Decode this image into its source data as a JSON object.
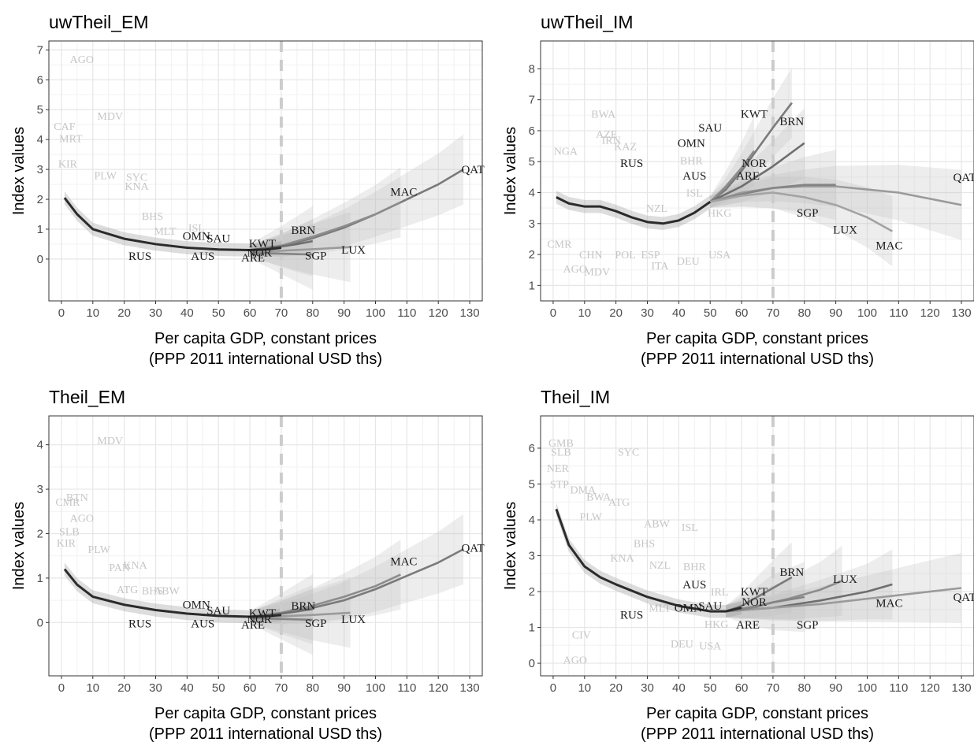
{
  "chart_data": [
    {
      "type": "line",
      "title": "uwTheil_EM",
      "xlabel": "Per capita GDP, constant prices",
      "xlabel2": "(PPP 2011 international USD ths)",
      "ylabel": "Index values",
      "xlim": [
        -4,
        134
      ],
      "ylim": [
        -1.4,
        7.3
      ],
      "xticks": [
        0,
        10,
        20,
        30,
        40,
        50,
        60,
        70,
        80,
        90,
        100,
        110,
        120,
        130
      ],
      "yticks": [
        0,
        1,
        2,
        3,
        4,
        5,
        6,
        7
      ],
      "vline_x": 70,
      "grid": true,
      "main_curve": {
        "x": [
          1,
          5,
          10,
          20,
          30,
          40,
          50,
          60,
          65,
          70
        ],
        "y": [
          2.05,
          1.5,
          1.0,
          0.68,
          0.5,
          0.38,
          0.32,
          0.3,
          0.32,
          0.38
        ]
      },
      "series": [
        {
          "name": "QAT",
          "x": [
            60,
            70,
            80,
            90,
            100,
            110,
            120,
            128
          ],
          "y": [
            0.3,
            0.42,
            0.7,
            1.05,
            1.5,
            2.0,
            2.5,
            3.0
          ]
        },
        {
          "name": "MAC",
          "x": [
            60,
            70,
            80,
            90,
            100,
            108
          ],
          "y": [
            0.3,
            0.45,
            0.75,
            1.1,
            1.5,
            1.9
          ]
        },
        {
          "name": "BRN",
          "x": [
            60,
            65,
            70,
            75,
            80
          ],
          "y": [
            0.3,
            0.36,
            0.42,
            0.5,
            0.6
          ]
        },
        {
          "name": "LUX",
          "x": [
            60,
            70,
            80,
            92
          ],
          "y": [
            0.25,
            0.28,
            0.33,
            0.4
          ]
        },
        {
          "name": "SGP",
          "x": [
            60,
            70,
            80
          ],
          "y": [
            0.22,
            0.18,
            0.15
          ]
        }
      ],
      "labels": [
        {
          "text": "OMN",
          "x": 43,
          "y": 0.78
        },
        {
          "text": "SAU",
          "x": 50,
          "y": 0.7
        },
        {
          "text": "KWT",
          "x": 64,
          "y": 0.52
        },
        {
          "text": "BRN",
          "x": 77,
          "y": 0.97
        },
        {
          "text": "NOR",
          "x": 63,
          "y": 0.22
        },
        {
          "text": "ARE",
          "x": 61,
          "y": 0.05
        },
        {
          "text": "AUS",
          "x": 45,
          "y": 0.1
        },
        {
          "text": "RUS",
          "x": 25,
          "y": 0.1
        },
        {
          "text": "SGP",
          "x": 81,
          "y": 0.12
        },
        {
          "text": "LUX",
          "x": 93,
          "y": 0.32
        },
        {
          "text": "MAC",
          "x": 109,
          "y": 2.25
        },
        {
          "text": "QAT",
          "x": 131,
          "y": 3.0
        }
      ],
      "background_labels": [
        {
          "text": "AGO",
          "x": 6.5,
          "y": 6.7
        },
        {
          "text": "MDV",
          "x": 15.5,
          "y": 4.8
        },
        {
          "text": "CAF",
          "x": 1,
          "y": 4.45
        },
        {
          "text": "MRT",
          "x": 3,
          "y": 4.05
        },
        {
          "text": "KIR",
          "x": 2,
          "y": 3.2
        },
        {
          "text": "PLW",
          "x": 14,
          "y": 2.8
        },
        {
          "text": "SYC",
          "x": 24,
          "y": 2.75
        },
        {
          "text": "KNA",
          "x": 24,
          "y": 2.45
        },
        {
          "text": "BHS",
          "x": 29,
          "y": 1.45
        },
        {
          "text": "ISL",
          "x": 43,
          "y": 1.05
        },
        {
          "text": "MLT",
          "x": 33,
          "y": 0.95
        }
      ]
    },
    {
      "type": "line",
      "title": "uwTheil_IM",
      "xlabel": "Per capita GDP, constant prices",
      "xlabel2": "(PPP 2011 international USD ths)",
      "ylabel": "Index values",
      "xlim": [
        -4,
        134
      ],
      "ylim": [
        0.5,
        8.9
      ],
      "xticks": [
        0,
        10,
        20,
        30,
        40,
        50,
        60,
        70,
        80,
        90,
        100,
        110,
        120,
        130
      ],
      "yticks": [
        1,
        2,
        3,
        4,
        5,
        6,
        7,
        8
      ],
      "vline_x": 70,
      "grid": true,
      "main_curve": {
        "x": [
          1,
          5,
          10,
          15,
          20,
          25,
          30,
          35,
          40,
          45,
          50
        ],
        "y": [
          3.85,
          3.65,
          3.55,
          3.55,
          3.4,
          3.2,
          3.05,
          3.0,
          3.1,
          3.35,
          3.7
        ]
      },
      "series": [
        {
          "name": "BRN",
          "x": [
            50,
            55,
            60,
            65,
            70,
            76
          ],
          "y": [
            3.7,
            4.1,
            4.7,
            5.4,
            6.1,
            6.9
          ]
        },
        {
          "name": "KWT",
          "x": [
            50,
            55,
            60,
            64
          ],
          "y": [
            3.7,
            4.2,
            4.8,
            5.35
          ]
        },
        {
          "name": "NOR",
          "x": [
            50,
            60,
            70,
            80
          ],
          "y": [
            3.7,
            4.2,
            4.85,
            5.6
          ]
        },
        {
          "name": "QAT",
          "x": [
            50,
            60,
            70,
            80,
            90,
            100,
            110,
            120,
            130
          ],
          "y": [
            3.7,
            4.0,
            4.15,
            4.2,
            4.2,
            4.1,
            4.0,
            3.8,
            3.6
          ]
        },
        {
          "name": "SGP",
          "x": [
            50,
            60,
            70,
            80,
            90
          ],
          "y": [
            3.7,
            3.95,
            4.15,
            4.25,
            4.25
          ]
        },
        {
          "name": "MAC",
          "x": [
            50,
            60,
            70,
            80,
            90,
            100,
            108
          ],
          "y": [
            3.7,
            3.9,
            4.0,
            3.85,
            3.6,
            3.2,
            2.75
          ]
        }
      ],
      "labels": [
        {
          "text": "KWT",
          "x": 64,
          "y": 6.55
        },
        {
          "text": "BRN",
          "x": 76,
          "y": 6.3
        },
        {
          "text": "SAU",
          "x": 50,
          "y": 6.1
        },
        {
          "text": "OMN",
          "x": 44,
          "y": 5.6
        },
        {
          "text": "RUS",
          "x": 25,
          "y": 4.95
        },
        {
          "text": "NOR",
          "x": 64,
          "y": 4.95
        },
        {
          "text": "ARE",
          "x": 62,
          "y": 4.55
        },
        {
          "text": "AUS",
          "x": 45,
          "y": 4.55
        },
        {
          "text": "SGP",
          "x": 81,
          "y": 3.35
        },
        {
          "text": "LUX",
          "x": 93,
          "y": 2.8
        },
        {
          "text": "MAC",
          "x": 107,
          "y": 2.3
        },
        {
          "text": "QAT",
          "x": 131,
          "y": 4.5
        }
      ],
      "background_labels": [
        {
          "text": "BWA",
          "x": 16,
          "y": 6.55
        },
        {
          "text": "AZE",
          "x": 17,
          "y": 5.9
        },
        {
          "text": "IRN",
          "x": 18.5,
          "y": 5.7
        },
        {
          "text": "KAZ",
          "x": 23,
          "y": 5.5
        },
        {
          "text": "NGA",
          "x": 4,
          "y": 5.35
        },
        {
          "text": "BHR",
          "x": 44,
          "y": 5.05
        },
        {
          "text": "ISL",
          "x": 45,
          "y": 4.0
        },
        {
          "text": "NZL",
          "x": 33,
          "y": 3.5
        },
        {
          "text": "HKG",
          "x": 53,
          "y": 3.35
        },
        {
          "text": "CHN",
          "x": 12,
          "y": 2.0
        },
        {
          "text": "POL",
          "x": 23,
          "y": 2.0
        },
        {
          "text": "ESP",
          "x": 31,
          "y": 2.0
        },
        {
          "text": "USA",
          "x": 53,
          "y": 2.0
        },
        {
          "text": "DEU",
          "x": 43,
          "y": 1.8
        },
        {
          "text": "ITA",
          "x": 34,
          "y": 1.65
        },
        {
          "text": "AGO",
          "x": 7,
          "y": 1.55
        },
        {
          "text": "MDV",
          "x": 14,
          "y": 1.45
        },
        {
          "text": "CMR",
          "x": 2,
          "y": 2.35
        }
      ]
    },
    {
      "type": "line",
      "title": "Theil_EM",
      "xlabel": "Per capita GDP, constant prices",
      "xlabel2": "(PPP 2011 international USD ths)",
      "ylabel": "Index values",
      "xlim": [
        -4,
        134
      ],
      "ylim": [
        -1.2,
        4.65
      ],
      "xticks": [
        0,
        10,
        20,
        30,
        40,
        50,
        60,
        70,
        80,
        90,
        100,
        110,
        120,
        130
      ],
      "yticks": [
        0,
        1,
        2,
        3,
        4
      ],
      "vline_x": 70,
      "grid": true,
      "main_curve": {
        "x": [
          1,
          5,
          10,
          20,
          30,
          40,
          50,
          60,
          65,
          70
        ],
        "y": [
          1.2,
          0.85,
          0.58,
          0.4,
          0.28,
          0.2,
          0.15,
          0.13,
          0.14,
          0.17
        ]
      },
      "series": [
        {
          "name": "QAT",
          "x": [
            60,
            70,
            80,
            90,
            100,
            110,
            120,
            128
          ],
          "y": [
            0.13,
            0.2,
            0.33,
            0.5,
            0.75,
            1.05,
            1.35,
            1.65
          ]
        },
        {
          "name": "MAC",
          "x": [
            60,
            70,
            80,
            90,
            100,
            108
          ],
          "y": [
            0.13,
            0.22,
            0.38,
            0.58,
            0.82,
            1.08
          ]
        },
        {
          "name": "BRN",
          "x": [
            60,
            65,
            70,
            75,
            80
          ],
          "y": [
            0.13,
            0.16,
            0.2,
            0.25,
            0.3
          ]
        },
        {
          "name": "LUX",
          "x": [
            60,
            70,
            80,
            92
          ],
          "y": [
            0.12,
            0.14,
            0.17,
            0.22
          ]
        },
        {
          "name": "SGP",
          "x": [
            60,
            70,
            80
          ],
          "y": [
            0.1,
            0.08,
            0.06
          ]
        }
      ],
      "labels": [
        {
          "text": "OMN",
          "x": 43,
          "y": 0.4
        },
        {
          "text": "SAU",
          "x": 50,
          "y": 0.27
        },
        {
          "text": "KWT",
          "x": 64,
          "y": 0.22
        },
        {
          "text": "BRN",
          "x": 77,
          "y": 0.38
        },
        {
          "text": "NOR",
          "x": 63,
          "y": 0.08
        },
        {
          "text": "ARE",
          "x": 61,
          "y": -0.05
        },
        {
          "text": "AUS",
          "x": 45,
          "y": -0.02
        },
        {
          "text": "RUS",
          "x": 25,
          "y": -0.02
        },
        {
          "text": "SGP",
          "x": 81,
          "y": -0.01
        },
        {
          "text": "LUX",
          "x": 93,
          "y": 0.08
        },
        {
          "text": "MAC",
          "x": 109,
          "y": 1.38
        },
        {
          "text": "QAT",
          "x": 131,
          "y": 1.68
        }
      ],
      "background_labels": [
        {
          "text": "MDV",
          "x": 15.5,
          "y": 4.1
        },
        {
          "text": "BTN",
          "x": 5,
          "y": 2.82
        },
        {
          "text": "CMR",
          "x": 2,
          "y": 2.72
        },
        {
          "text": "AGO",
          "x": 6.5,
          "y": 2.35
        },
        {
          "text": "SLB",
          "x": 2.5,
          "y": 2.05
        },
        {
          "text": "KIR",
          "x": 1.5,
          "y": 1.8
        },
        {
          "text": "PLW",
          "x": 12,
          "y": 1.65
        },
        {
          "text": "PAN",
          "x": 18.5,
          "y": 1.25
        },
        {
          "text": "KNA",
          "x": 23.5,
          "y": 1.3
        },
        {
          "text": "ATG",
          "x": 21,
          "y": 0.75
        },
        {
          "text": "BHS",
          "x": 29,
          "y": 0.72
        },
        {
          "text": "ABW",
          "x": 33.5,
          "y": 0.72
        }
      ]
    },
    {
      "type": "line",
      "title": "Theil_IM",
      "xlabel": "Per capita GDP, constant prices",
      "xlabel2": "(PPP 2011 international USD ths)",
      "ylabel": "Index values",
      "xlim": [
        -4,
        134
      ],
      "ylim": [
        -0.35,
        6.9
      ],
      "xticks": [
        0,
        10,
        20,
        30,
        40,
        50,
        60,
        70,
        80,
        90,
        100,
        110,
        120,
        130
      ],
      "yticks": [
        0,
        1,
        2,
        3,
        4,
        5,
        6
      ],
      "vline_x": 70,
      "grid": true,
      "main_curve": {
        "x": [
          1,
          5,
          10,
          15,
          20,
          30,
          40,
          50,
          55,
          60
        ],
        "y": [
          4.3,
          3.3,
          2.7,
          2.4,
          2.2,
          1.85,
          1.6,
          1.45,
          1.45,
          1.55
        ]
      },
      "series": [
        {
          "name": "BRN",
          "x": [
            55,
            60,
            65,
            70,
            76
          ],
          "y": [
            1.45,
            1.6,
            1.85,
            2.1,
            2.4
          ]
        },
        {
          "name": "LUX",
          "x": [
            55,
            65,
            75,
            85,
            92
          ],
          "y": [
            1.45,
            1.6,
            1.8,
            2.05,
            2.3
          ]
        },
        {
          "name": "MAC",
          "x": [
            55,
            70,
            85,
            100,
            108
          ],
          "y": [
            1.45,
            1.55,
            1.75,
            2.0,
            2.2
          ]
        },
        {
          "name": "QAT",
          "x": [
            55,
            70,
            85,
            100,
            115,
            130
          ],
          "y": [
            1.45,
            1.55,
            1.65,
            1.8,
            1.95,
            2.1
          ]
        },
        {
          "name": "NOR",
          "x": [
            55,
            60,
            65,
            70,
            80
          ],
          "y": [
            1.45,
            1.5,
            1.58,
            1.7,
            1.85
          ]
        }
      ],
      "labels": [
        {
          "text": "BRN",
          "x": 76,
          "y": 2.55
        },
        {
          "text": "LUX",
          "x": 93,
          "y": 2.35
        },
        {
          "text": "AUS",
          "x": 45,
          "y": 2.2
        },
        {
          "text": "KWT",
          "x": 64,
          "y": 2.0
        },
        {
          "text": "NOR",
          "x": 64,
          "y": 1.72
        },
        {
          "text": "OMN",
          "x": 43,
          "y": 1.55
        },
        {
          "text": "SAU",
          "x": 50,
          "y": 1.6
        },
        {
          "text": "RUS",
          "x": 25,
          "y": 1.35
        },
        {
          "text": "ARE",
          "x": 62,
          "y": 1.08
        },
        {
          "text": "SGP",
          "x": 81,
          "y": 1.08
        },
        {
          "text": "MAC",
          "x": 107,
          "y": 1.68
        },
        {
          "text": "QAT",
          "x": 131,
          "y": 1.85
        }
      ],
      "background_labels": [
        {
          "text": "GMB",
          "x": 2.5,
          "y": 6.15
        },
        {
          "text": "SLB",
          "x": 2.5,
          "y": 5.9
        },
        {
          "text": "SYC",
          "x": 24,
          "y": 5.9
        },
        {
          "text": "NER",
          "x": 1.5,
          "y": 5.45
        },
        {
          "text": "STP",
          "x": 2,
          "y": 5.0
        },
        {
          "text": "DMA",
          "x": 9.5,
          "y": 4.85
        },
        {
          "text": "BWA",
          "x": 14.5,
          "y": 4.65
        },
        {
          "text": "ATG",
          "x": 21,
          "y": 4.5
        },
        {
          "text": "PLW",
          "x": 12,
          "y": 4.1
        },
        {
          "text": "ABW",
          "x": 33,
          "y": 3.9
        },
        {
          "text": "ISL",
          "x": 43.5,
          "y": 3.8
        },
        {
          "text": "BHS",
          "x": 29,
          "y": 3.35
        },
        {
          "text": "KNA",
          "x": 22,
          "y": 2.95
        },
        {
          "text": "NZL",
          "x": 34,
          "y": 2.75
        },
        {
          "text": "BHR",
          "x": 45,
          "y": 2.7
        },
        {
          "text": "IRL",
          "x": 53,
          "y": 2.0
        },
        {
          "text": "MLT",
          "x": 34,
          "y": 1.55
        },
        {
          "text": "HKG",
          "x": 52,
          "y": 1.1
        },
        {
          "text": "CIV",
          "x": 9,
          "y": 0.8
        },
        {
          "text": "DEU",
          "x": 41,
          "y": 0.55
        },
        {
          "text": "USA",
          "x": 50,
          "y": 0.5
        },
        {
          "text": "AGO",
          "x": 7,
          "y": 0.1
        }
      ]
    }
  ]
}
